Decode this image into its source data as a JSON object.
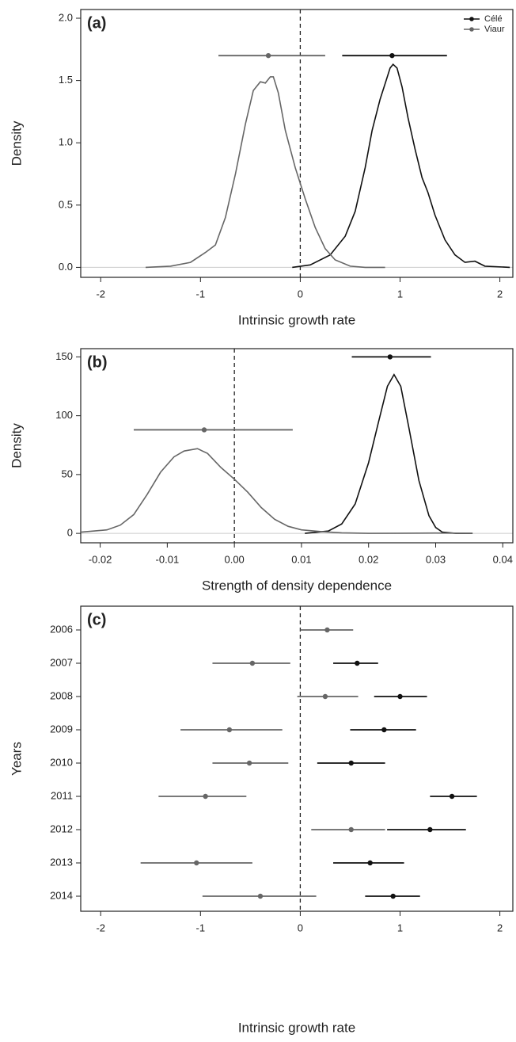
{
  "chart_data": [
    {
      "type": "density",
      "panel_label": "(a)",
      "x_label": "Intrinsic growth rate",
      "y_label": "Density",
      "xlim": [
        -2.2,
        2.13
      ],
      "ylim": [
        -0.08,
        2.07
      ],
      "xticks": [
        -2,
        -1,
        0,
        1,
        2
      ],
      "yticks": [
        {
          "value": 0,
          "label": "0.0"
        },
        {
          "value": 0.5,
          "label": "0.5"
        },
        {
          "value": 1,
          "label": "1.0"
        },
        {
          "value": 1.5,
          "label": "1.5"
        },
        {
          "value": 2,
          "label": "2.0"
        }
      ],
      "vline": 0,
      "hline": 0,
      "legend": "top-right",
      "series": [
        {
          "name": "Célé",
          "color": "#111111",
          "x": [
            -0.08,
            0.1,
            0.3,
            0.45,
            0.55,
            0.65,
            0.72,
            0.8,
            0.86,
            0.9,
            0.93,
            0.97,
            1.02,
            1.08,
            1.15,
            1.22,
            1.28,
            1.35,
            1.45,
            1.55,
            1.65,
            1.75,
            1.85,
            2.1
          ],
          "values": [
            0,
            0.02,
            0.1,
            0.25,
            0.45,
            0.8,
            1.1,
            1.35,
            1.5,
            1.6,
            1.63,
            1.6,
            1.45,
            1.2,
            0.95,
            0.72,
            0.6,
            0.42,
            0.22,
            0.1,
            0.04,
            0.05,
            0.01,
            0
          ],
          "estimate": 0.92,
          "lower": 0.42,
          "upper": 1.47,
          "estimate_y": 1.7
        },
        {
          "name": "Viaur",
          "color": "#666666",
          "x": [
            -1.55,
            -1.3,
            -1.1,
            -0.95,
            -0.85,
            -0.75,
            -0.65,
            -0.55,
            -0.47,
            -0.4,
            -0.35,
            -0.3,
            -0.27,
            -0.22,
            -0.15,
            -0.05,
            0.05,
            0.15,
            0.25,
            0.35,
            0.5,
            0.65,
            0.85
          ],
          "values": [
            0,
            0.01,
            0.04,
            0.12,
            0.18,
            0.4,
            0.75,
            1.15,
            1.42,
            1.49,
            1.48,
            1.53,
            1.53,
            1.4,
            1.1,
            0.8,
            0.55,
            0.32,
            0.15,
            0.06,
            0.01,
            0,
            0
          ],
          "estimate": -0.32,
          "lower": -0.82,
          "upper": 0.25,
          "estimate_y": 1.7
        }
      ]
    },
    {
      "type": "density",
      "panel_label": "(b)",
      "x_label": "Strength of density dependence",
      "y_label": "Density",
      "xlim": [
        -0.0229,
        0.0415
      ],
      "ylim": [
        -8,
        157
      ],
      "xticks": [
        -0.02,
        -0.01,
        {
          "value": 0,
          "label": "0.00"
        },
        0.01,
        0.02,
        0.03,
        0.04
      ],
      "yticks": [
        0,
        50,
        100,
        150
      ],
      "vline": 0,
      "hline": 0,
      "series": [
        {
          "color": "#111111",
          "x": [
            0.0105,
            0.014,
            0.016,
            0.018,
            0.02,
            0.0215,
            0.0228,
            0.0238,
            0.0248,
            0.026,
            0.0275,
            0.029,
            0.03,
            0.031,
            0.033,
            0.0355
          ],
          "values": [
            0,
            2,
            8,
            25,
            60,
            95,
            125,
            135,
            125,
            90,
            45,
            15,
            5,
            1,
            0,
            0
          ],
          "estimate": 0.0232,
          "lower": 0.0175,
          "upper": 0.0293,
          "estimate_y": 150
        },
        {
          "color": "#666666",
          "x": [
            -0.0229,
            -0.019,
            -0.017,
            -0.015,
            -0.013,
            -0.011,
            -0.009,
            -0.0075,
            -0.0055,
            -0.004,
            -0.002,
            0,
            0.002,
            0.004,
            0.006,
            0.008,
            0.01,
            0.013,
            0.016,
            0.02,
            0.03,
            0.0355
          ],
          "values": [
            1,
            3,
            7,
            16,
            33,
            52,
            65,
            70,
            72,
            68,
            56,
            46,
            35,
            22,
            12,
            6,
            3,
            1.5,
            0.5,
            0,
            0.3,
            0
          ],
          "estimate": -0.0045,
          "lower": -0.015,
          "upper": 0.0087,
          "estimate_y": 88
        }
      ]
    },
    {
      "type": "interval",
      "panel_label": "(c)",
      "x_label": "Intrinsic growth rate",
      "y_label": "Years",
      "xlim": [
        -2.2,
        2.13
      ],
      "xticks": [
        -2,
        -1,
        0,
        1,
        2
      ],
      "vline": 0,
      "categories": [
        "2006",
        "2007",
        "2008",
        "2009",
        "2010",
        "2011",
        "2012",
        "2013",
        "2014"
      ],
      "series": [
        {
          "color": "#666666",
          "values": [
            0.27,
            -0.48,
            0.25,
            -0.71,
            -0.51,
            -0.95,
            0.51,
            -1.04,
            -0.4
          ],
          "lower": [
            0,
            -0.88,
            -0.03,
            -1.2,
            -0.88,
            -1.42,
            0.11,
            -1.6,
            -0.98
          ],
          "upper": [
            0.53,
            -0.1,
            0.58,
            -0.18,
            -0.12,
            -0.54,
            0.85,
            -0.48,
            0.16
          ]
        },
        {
          "color": "#111111",
          "values": [
            null,
            0.57,
            1.0,
            0.84,
            0.51,
            1.52,
            1.3,
            0.7,
            0.93
          ],
          "lower": [
            null,
            0.33,
            0.74,
            0.5,
            0.17,
            1.3,
            0.87,
            0.33,
            0.65
          ],
          "upper": [
            null,
            0.78,
            1.27,
            1.16,
            0.85,
            1.77,
            1.66,
            1.04,
            1.2
          ]
        }
      ]
    }
  ]
}
